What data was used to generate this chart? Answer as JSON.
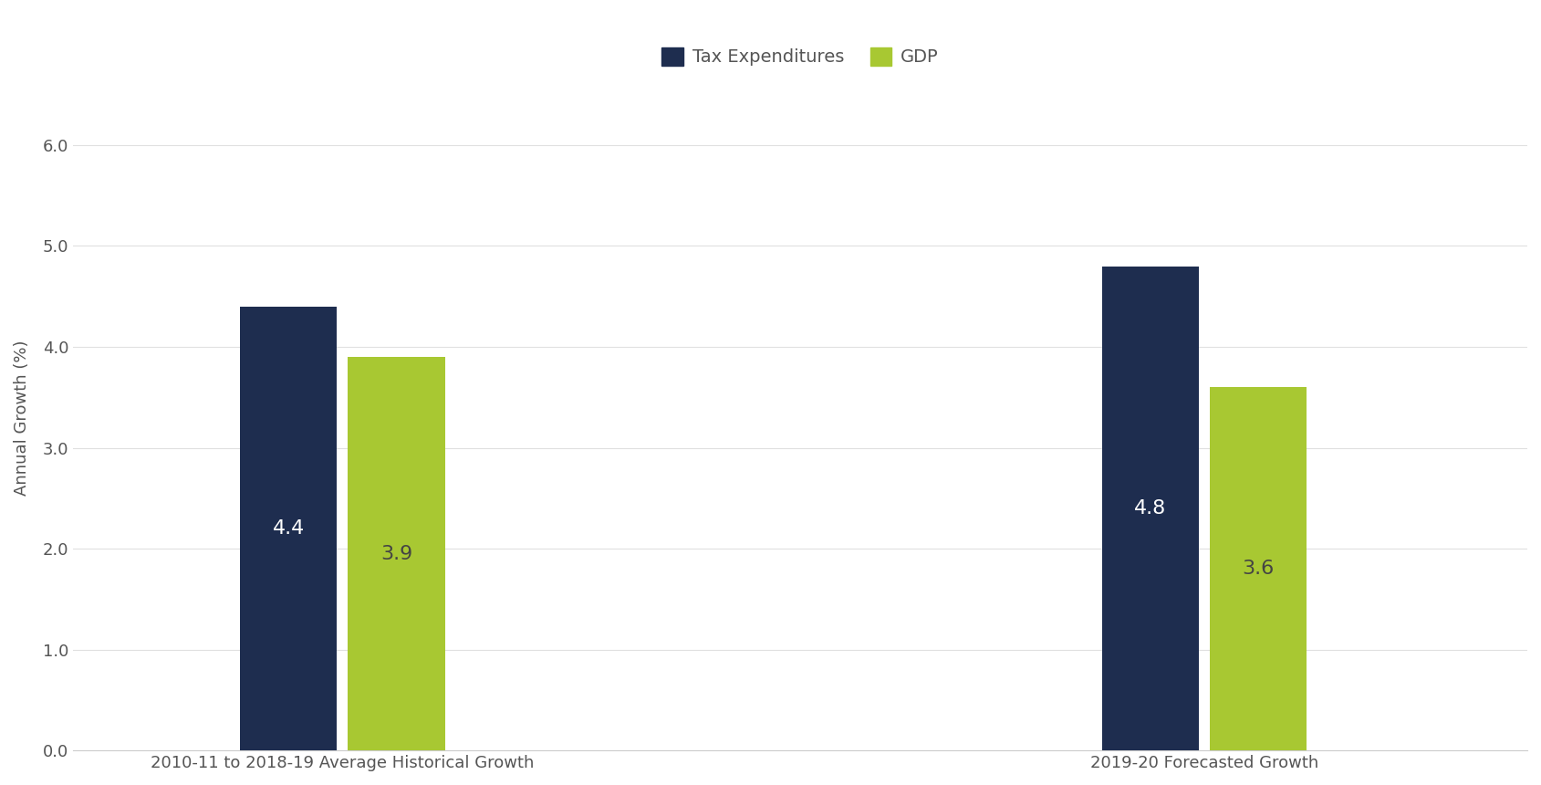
{
  "groups": [
    "2010-11 to 2018-19 Average Historical Growth",
    "2019-20 Forecasted Growth"
  ],
  "tax_expenditures": [
    4.4,
    4.8
  ],
  "gdp": [
    3.9,
    3.6
  ],
  "tax_color": "#1e2d4f",
  "gdp_color": "#a8c832",
  "bar_width": 0.18,
  "bar_gap": 0.02,
  "group_positions": [
    1.0,
    2.6
  ],
  "ylim": [
    0,
    6.6
  ],
  "yticks": [
    0.0,
    1.0,
    2.0,
    3.0,
    4.0,
    5.0,
    6.0
  ],
  "ylabel": "Annual Growth (%)",
  "legend_labels": [
    "Tax Expenditures",
    "GDP"
  ],
  "tax_label_color": "#ffffff",
  "gdp_label_color": "#444444",
  "label_fontsize": 16,
  "axis_label_color": "#555555",
  "tick_color": "#555555",
  "background_color": "#ffffff",
  "xlim": [
    0.5,
    3.2
  ]
}
